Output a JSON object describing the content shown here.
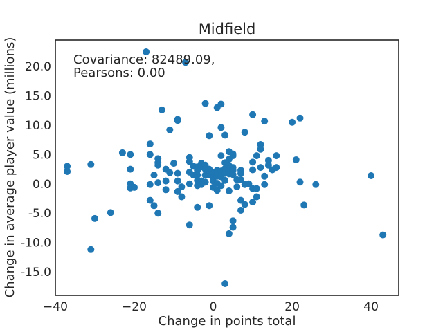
{
  "chart_data": {
    "type": "scatter",
    "title": "Midfield",
    "xlabel": "Change in points total",
    "ylabel": "Change in average player value (millions)",
    "xlim": [
      -40,
      47
    ],
    "ylim": [
      -19,
      24.5
    ],
    "xticks": [
      -40,
      -20,
      0,
      20,
      40
    ],
    "xtick_labels": [
      "−40",
      "−20",
      "0",
      "20",
      "40"
    ],
    "yticks": [
      -15,
      -10,
      -5,
      0,
      5,
      10,
      15,
      20
    ],
    "ytick_labels": [
      "-15.0",
      "-10.0",
      "-5.0",
      "0.0",
      "5.0",
      "10.0",
      "15.0",
      "20.0"
    ],
    "annotation": [
      "Covariance: 82489.09,",
      "Pearsons: 0.00"
    ],
    "grid": false,
    "marker_color": "#1f77b4",
    "points": [
      [
        -37,
        3.0
      ],
      [
        -37,
        2.1
      ],
      [
        -31,
        3.3
      ],
      [
        -30,
        -5.9
      ],
      [
        -31,
        -11.2
      ],
      [
        -26,
        -4.9
      ],
      [
        -23,
        5.3
      ],
      [
        -21,
        5.0
      ],
      [
        -21,
        2.5
      ],
      [
        -21,
        0.0
      ],
      [
        -21,
        -0.7
      ],
      [
        -20,
        -0.6
      ],
      [
        -17,
        22.5
      ],
      [
        -16,
        6.8
      ],
      [
        -16,
        5.0
      ],
      [
        -15,
        1.5
      ],
      [
        -16,
        -0.1
      ],
      [
        -16,
        -2.8
      ],
      [
        -15,
        -3.7
      ],
      [
        -14,
        4.3
      ],
      [
        -14,
        3.6
      ],
      [
        -14,
        3.2
      ],
      [
        -14,
        0.2
      ],
      [
        -14,
        -5.0
      ],
      [
        -13,
        12.6
      ],
      [
        -12,
        2.5
      ],
      [
        -12,
        0.5
      ],
      [
        -12,
        -1.0
      ],
      [
        -11,
        9.2
      ],
      [
        -11,
        1.9
      ],
      [
        -10,
        3.5
      ],
      [
        -9,
        11.0
      ],
      [
        -9,
        10.8
      ],
      [
        -9,
        1.8
      ],
      [
        -9,
        0.5
      ],
      [
        -9,
        -1.3
      ],
      [
        -8,
        -0.5
      ],
      [
        -8,
        -2.2
      ],
      [
        -7,
        20.7
      ],
      [
        -6,
        4.5
      ],
      [
        -6,
        3.8
      ],
      [
        -6,
        2.0
      ],
      [
        -6,
        0.0
      ],
      [
        -6,
        -7.0
      ],
      [
        -5,
        3.0
      ],
      [
        -5,
        1.5
      ],
      [
        -4,
        2.9
      ],
      [
        -4,
        2.3
      ],
      [
        -4,
        1.5
      ],
      [
        -4,
        0.6
      ],
      [
        -4,
        -0.3
      ],
      [
        -4,
        -4.0
      ],
      [
        -3,
        3.5
      ],
      [
        -3,
        2.9
      ],
      [
        -3,
        0.5
      ],
      [
        -3,
        -0.1
      ],
      [
        -2,
        13.7
      ],
      [
        -2,
        3.2
      ],
      [
        -2,
        2.5
      ],
      [
        -2,
        1.5
      ],
      [
        -2,
        0.3
      ],
      [
        -1,
        8.2
      ],
      [
        -1,
        2.5
      ],
      [
        -1,
        1.5
      ],
      [
        -1,
        -3.7
      ],
      [
        0,
        2.0
      ],
      [
        0,
        1.0
      ],
      [
        0,
        0.5
      ],
      [
        0,
        -0.6
      ],
      [
        1,
        13.0
      ],
      [
        1,
        2.3
      ],
      [
        1,
        1.3
      ],
      [
        1,
        0.1
      ],
      [
        1,
        -1.1
      ],
      [
        2,
        13.6
      ],
      [
        2,
        9.6
      ],
      [
        2,
        4.8
      ],
      [
        2,
        2.2
      ],
      [
        2,
        1.2
      ],
      [
        2,
        -0.3
      ],
      [
        3,
        8.3
      ],
      [
        3,
        3.6
      ],
      [
        3,
        2.6
      ],
      [
        3,
        1.8
      ],
      [
        3,
        0.6
      ],
      [
        3,
        -17.0
      ],
      [
        4,
        5.5
      ],
      [
        4,
        4.2
      ],
      [
        4,
        3.1
      ],
      [
        4,
        2.3
      ],
      [
        4,
        1.7
      ],
      [
        4,
        -1.2
      ],
      [
        4,
        -8.5
      ],
      [
        5,
        5.1
      ],
      [
        5,
        4.8
      ],
      [
        5,
        2.8
      ],
      [
        5,
        2.3
      ],
      [
        5,
        1.6
      ],
      [
        5,
        -6.3
      ],
      [
        5,
        -7.4
      ],
      [
        6,
        0.7
      ],
      [
        6,
        -0.5
      ],
      [
        7,
        2.3
      ],
      [
        7,
        1.8
      ],
      [
        7,
        0.7
      ],
      [
        7,
        -2.8
      ],
      [
        7,
        -4.5
      ],
      [
        8,
        8.8
      ],
      [
        8,
        -0.1
      ],
      [
        8,
        -3.5
      ],
      [
        9,
        0.0
      ],
      [
        10,
        11.8
      ],
      [
        10,
        3.7
      ],
      [
        10,
        2.4
      ],
      [
        10,
        -0.8
      ],
      [
        10,
        -3.1
      ],
      [
        11,
        4.8
      ],
      [
        11,
        -0.8
      ],
      [
        11,
        -2.2
      ],
      [
        12,
        6.7
      ],
      [
        12,
        5.9
      ],
      [
        12,
        2.8
      ],
      [
        13,
        10.7
      ],
      [
        13,
        1.3
      ],
      [
        13,
        -0.1
      ],
      [
        14,
        4.0
      ],
      [
        14,
        3.2
      ],
      [
        15,
        2.4
      ],
      [
        16,
        4.8
      ],
      [
        16,
        2.8
      ],
      [
        20,
        10.5
      ],
      [
        21,
        4.1
      ],
      [
        22,
        11.2
      ],
      [
        22,
        0.3
      ],
      [
        23,
        -3.6
      ],
      [
        26,
        -0.1
      ],
      [
        40,
        1.4
      ],
      [
        43,
        -8.7
      ]
    ]
  }
}
